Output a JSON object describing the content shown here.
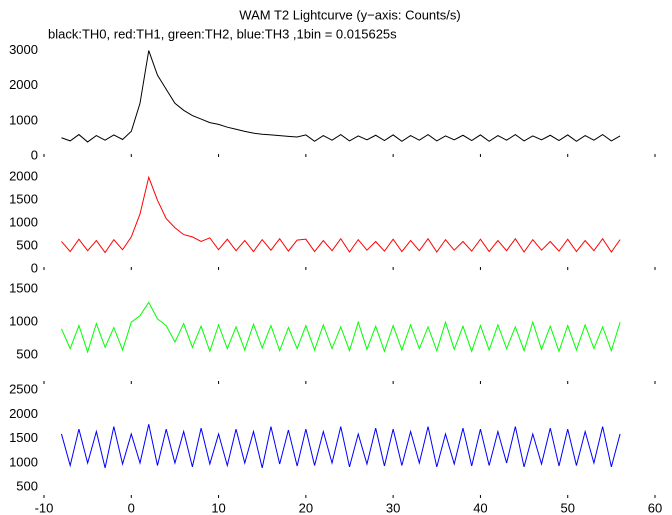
{
  "title": "WAM T2 Lightcurve (y−axis: Counts/s)",
  "subtitle": "black:TH0, red:TH1, green:TH2, blue:TH3 ,1bin = 0.015625s",
  "chart_data": [
    {
      "type": "line",
      "color": "#000000",
      "x": [
        -8,
        -7,
        -6,
        -5,
        -4,
        -3,
        -2,
        -1,
        0,
        1,
        2,
        3,
        4,
        5,
        6,
        7,
        8,
        9,
        10,
        11,
        12,
        13,
        14,
        15,
        16,
        17,
        18,
        19,
        20,
        21,
        22,
        23,
        24,
        25,
        26,
        27,
        28,
        29,
        30,
        31,
        32,
        33,
        34,
        35,
        36,
        37,
        38,
        39,
        40,
        41,
        42,
        43,
        44,
        45,
        46,
        47,
        48,
        49,
        50,
        51,
        52,
        53,
        54,
        55,
        56
      ],
      "values": [
        520,
        430,
        610,
        400,
        580,
        450,
        600,
        470,
        700,
        1500,
        3000,
        2300,
        1900,
        1500,
        1300,
        1150,
        1050,
        950,
        900,
        820,
        760,
        700,
        650,
        620,
        600,
        580,
        560,
        540,
        600,
        420,
        580,
        450,
        610,
        430,
        570,
        460,
        590,
        440,
        600,
        420,
        580,
        450,
        610,
        430,
        570,
        460,
        590,
        440,
        600,
        420,
        580,
        450,
        610,
        430,
        570,
        460,
        590,
        440,
        600,
        420,
        580,
        450,
        610,
        430,
        570
      ],
      "xlim": [
        -10,
        60
      ],
      "xticks": [
        -10,
        0,
        10,
        20,
        30,
        40,
        50,
        60
      ],
      "ylim": [
        0,
        3300
      ],
      "yticks": [
        0,
        1000,
        2000,
        3000
      ]
    },
    {
      "type": "line",
      "color": "#ff0000",
      "x": [
        -8,
        -7,
        -6,
        -5,
        -4,
        -3,
        -2,
        -1,
        0,
        1,
        2,
        3,
        4,
        5,
        6,
        7,
        8,
        9,
        10,
        11,
        12,
        13,
        14,
        15,
        16,
        17,
        18,
        19,
        20,
        21,
        22,
        23,
        24,
        25,
        26,
        27,
        28,
        29,
        30,
        31,
        32,
        33,
        34,
        35,
        36,
        37,
        38,
        39,
        40,
        41,
        42,
        43,
        44,
        45,
        46,
        47,
        48,
        49,
        50,
        51,
        52,
        53,
        54,
        55,
        56
      ],
      "values": [
        600,
        380,
        650,
        400,
        620,
        360,
        640,
        420,
        700,
        1200,
        2000,
        1500,
        1100,
        900,
        750,
        700,
        600,
        680,
        420,
        650,
        400,
        620,
        380,
        640,
        410,
        660,
        390,
        630,
        650,
        380,
        620,
        400,
        660,
        370,
        640,
        410,
        600,
        390,
        650,
        380,
        620,
        400,
        660,
        370,
        640,
        410,
        600,
        390,
        650,
        380,
        620,
        400,
        660,
        370,
        640,
        410,
        600,
        390,
        650,
        380,
        620,
        400,
        660,
        370,
        640
      ],
      "xlim": [
        -10,
        60
      ],
      "xticks": [
        -10,
        0,
        10,
        20,
        30,
        40,
        50,
        60
      ],
      "ylim": [
        0,
        2420
      ],
      "yticks": [
        0,
        500,
        1000,
        1500,
        2000
      ]
    },
    {
      "type": "line",
      "color": "#00ff00",
      "x": [
        -8,
        -7,
        -6,
        -5,
        -4,
        -3,
        -2,
        -1,
        0,
        1,
        2,
        3,
        4,
        5,
        6,
        7,
        8,
        9,
        10,
        11,
        12,
        13,
        14,
        15,
        16,
        17,
        18,
        19,
        20,
        21,
        22,
        23,
        24,
        25,
        26,
        27,
        28,
        29,
        30,
        31,
        32,
        33,
        34,
        35,
        36,
        37,
        38,
        39,
        40,
        41,
        42,
        43,
        44,
        45,
        46,
        47,
        48,
        49,
        50,
        51,
        52,
        53,
        54,
        55,
        56
      ],
      "values": [
        900,
        600,
        950,
        550,
        980,
        620,
        920,
        580,
        1000,
        1100,
        1300,
        1050,
        950,
        700,
        980,
        620,
        940,
        560,
        960,
        600,
        930,
        580,
        970,
        610,
        950,
        570,
        920,
        600,
        950,
        580,
        960,
        600,
        930,
        570,
        1000,
        590,
        940,
        560,
        950,
        580,
        960,
        600,
        930,
        570,
        1000,
        590,
        940,
        560,
        950,
        580,
        960,
        600,
        930,
        570,
        1000,
        590,
        940,
        560,
        950,
        580,
        960,
        600,
        930,
        570,
        1000
      ],
      "xlim": [
        -10,
        60
      ],
      "xticks": [
        -10,
        0,
        10,
        20,
        30,
        40,
        50,
        60
      ],
      "ylim": [
        80,
        1760
      ],
      "yticks": [
        500,
        1000,
        1500
      ]
    },
    {
      "type": "line",
      "color": "#0000ff",
      "x": [
        -8,
        -7,
        -6,
        -5,
        -4,
        -3,
        -2,
        -1,
        0,
        1,
        2,
        3,
        4,
        5,
        6,
        7,
        8,
        9,
        10,
        11,
        12,
        13,
        14,
        15,
        16,
        17,
        18,
        19,
        20,
        21,
        22,
        23,
        24,
        25,
        26,
        27,
        28,
        29,
        30,
        31,
        32,
        33,
        34,
        35,
        36,
        37,
        38,
        39,
        40,
        41,
        42,
        43,
        44,
        45,
        46,
        47,
        48,
        49,
        50,
        51,
        52,
        53,
        54,
        55,
        56
      ],
      "values": [
        1600,
        950,
        1700,
        1000,
        1650,
        900,
        1750,
        980,
        1600,
        1000,
        1800,
        950,
        1700,
        1000,
        1650,
        920,
        1720,
        980,
        1600,
        950,
        1700,
        1000,
        1650,
        900,
        1750,
        980,
        1680,
        940,
        1700,
        950,
        1650,
        1000,
        1750,
        920,
        1600,
        980,
        1720,
        940,
        1700,
        950,
        1650,
        1000,
        1750,
        920,
        1600,
        980,
        1720,
        940,
        1700,
        950,
        1650,
        1000,
        1750,
        920,
        1600,
        980,
        1720,
        940,
        1700,
        950,
        1650,
        1000,
        1750,
        920,
        1600
      ],
      "xlim": [
        -10,
        60
      ],
      "xticks": [
        -10,
        0,
        10,
        20,
        30,
        40,
        50,
        60
      ],
      "ylim": [
        300,
        2650
      ],
      "yticks": [
        500,
        1000,
        1500,
        2000,
        2500
      ]
    }
  ]
}
